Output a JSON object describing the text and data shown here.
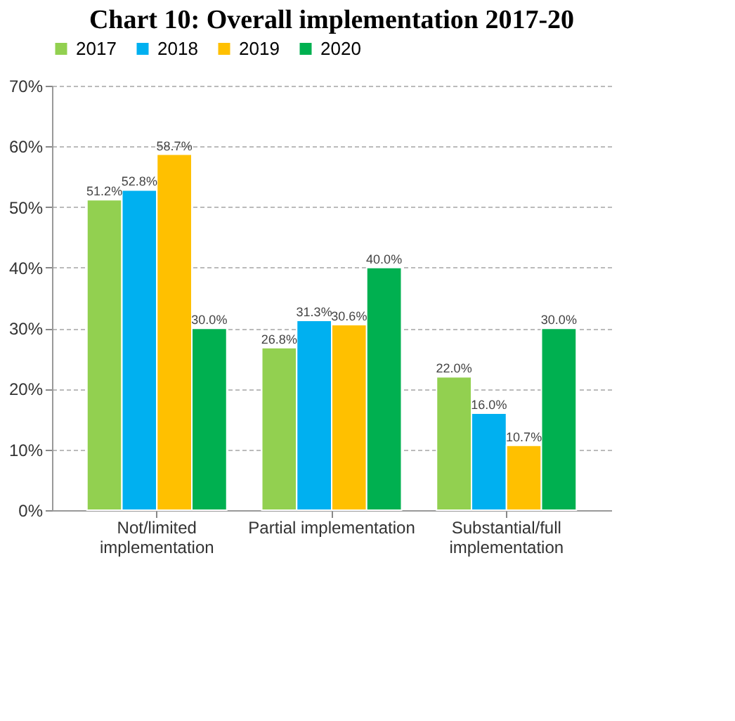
{
  "chart_data": {
    "type": "bar",
    "title": "Chart 10: Overall implementation 2017-20",
    "categories": [
      "Not/limited implementation",
      "Partial implementation",
      "Substantial/full implementation"
    ],
    "series": [
      {
        "name": "2017",
        "color": "#92d050",
        "values": [
          51.2,
          26.8,
          22.0
        ],
        "value_labels": [
          "51.2%",
          "26.8%",
          "22.0%"
        ]
      },
      {
        "name": "2018",
        "color": "#00b0f0",
        "values": [
          52.8,
          31.3,
          16.0
        ],
        "value_labels": [
          "52.8%",
          "31.3%",
          "16.0%"
        ]
      },
      {
        "name": "2019",
        "color": "#ffc000",
        "values": [
          58.7,
          30.6,
          10.7
        ],
        "value_labels": [
          "58.7%",
          "30.6%",
          "10.7%"
        ]
      },
      {
        "name": "2020",
        "color": "#00b050",
        "values": [
          30.0,
          40.0,
          30.0
        ],
        "value_labels": [
          "30.0%",
          "40.0%",
          "30.0%"
        ]
      }
    ],
    "ylim": [
      0,
      70
    ],
    "yticks": [
      {
        "value": 0,
        "label": "0%"
      },
      {
        "value": 10,
        "label": "10%"
      },
      {
        "value": 20,
        "label": "20%"
      },
      {
        "value": 30,
        "label": "30%"
      },
      {
        "value": 40,
        "label": "40%"
      },
      {
        "value": 50,
        "label": "50%"
      },
      {
        "value": 60,
        "label": "60%"
      },
      {
        "value": 70,
        "label": "70%"
      }
    ],
    "grid": "y",
    "legend": "top"
  }
}
